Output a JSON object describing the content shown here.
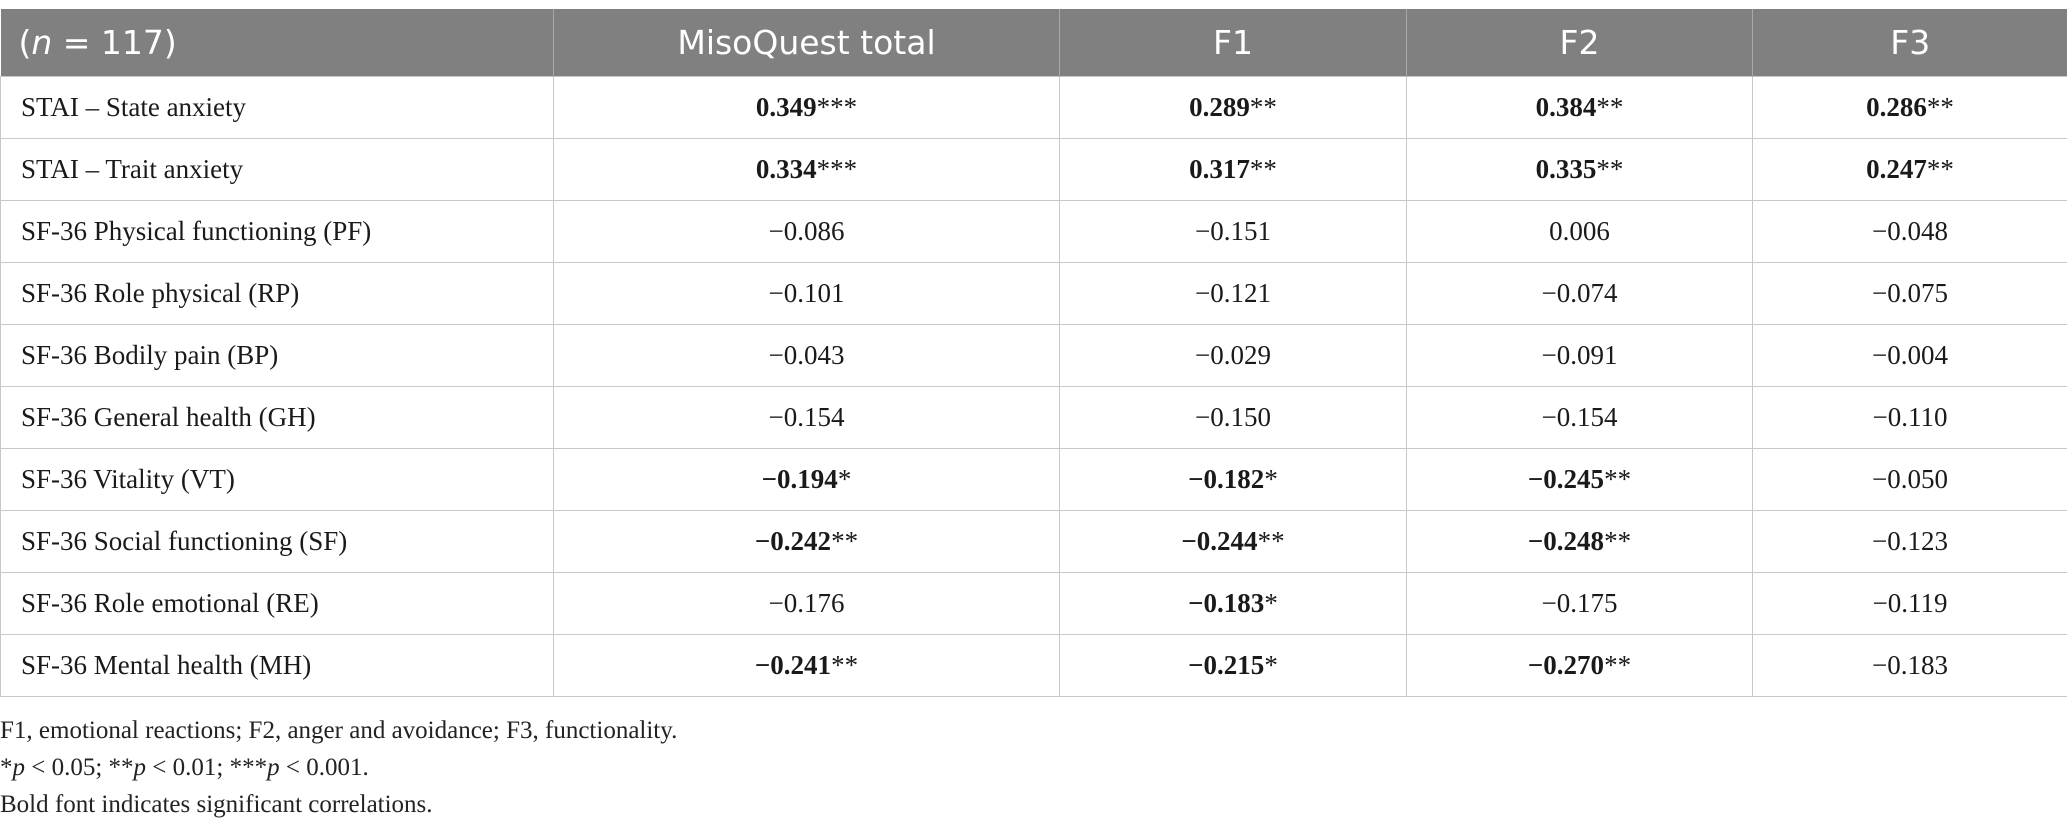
{
  "table": {
    "header": {
      "n_label": "(n = 117)",
      "n_var": "n",
      "n_rest": " = 117)",
      "col_misoquest": "MisoQuest total",
      "col_f1": "F1",
      "col_f2": "F2",
      "col_f3": "F3"
    },
    "rows": [
      {
        "label": "STAI – State anxiety",
        "misoquest": {
          "value": "0.349",
          "stars": "***",
          "significant": true
        },
        "f1": {
          "value": "0.289",
          "stars": "**",
          "significant": true
        },
        "f2": {
          "value": "0.384",
          "stars": "**",
          "significant": true
        },
        "f3": {
          "value": "0.286",
          "stars": "**",
          "significant": true
        }
      },
      {
        "label": "STAI – Trait anxiety",
        "misoquest": {
          "value": "0.334",
          "stars": "***",
          "significant": true
        },
        "f1": {
          "value": "0.317",
          "stars": "**",
          "significant": true
        },
        "f2": {
          "value": "0.335",
          "stars": "**",
          "significant": true
        },
        "f3": {
          "value": "0.247",
          "stars": "**",
          "significant": true
        }
      },
      {
        "label": "SF-36 Physical functioning (PF)",
        "misoquest": {
          "value": "−0.086",
          "stars": "",
          "significant": false
        },
        "f1": {
          "value": "−0.151",
          "stars": "",
          "significant": false
        },
        "f2": {
          "value": "0.006",
          "stars": "",
          "significant": false
        },
        "f3": {
          "value": "−0.048",
          "stars": "",
          "significant": false
        }
      },
      {
        "label": "SF-36 Role physical (RP)",
        "misoquest": {
          "value": "−0.101",
          "stars": "",
          "significant": false
        },
        "f1": {
          "value": "−0.121",
          "stars": "",
          "significant": false
        },
        "f2": {
          "value": "−0.074",
          "stars": "",
          "significant": false
        },
        "f3": {
          "value": "−0.075",
          "stars": "",
          "significant": false
        }
      },
      {
        "label": "SF-36 Bodily pain (BP)",
        "misoquest": {
          "value": "−0.043",
          "stars": "",
          "significant": false
        },
        "f1": {
          "value": "−0.029",
          "stars": "",
          "significant": false
        },
        "f2": {
          "value": "−0.091",
          "stars": "",
          "significant": false
        },
        "f3": {
          "value": "−0.004",
          "stars": "",
          "significant": false
        }
      },
      {
        "label": "SF-36 General health (GH)",
        "misoquest": {
          "value": "−0.154",
          "stars": "",
          "significant": false
        },
        "f1": {
          "value": "−0.150",
          "stars": "",
          "significant": false
        },
        "f2": {
          "value": "−0.154",
          "stars": "",
          "significant": false
        },
        "f3": {
          "value": "−0.110",
          "stars": "",
          "significant": false
        }
      },
      {
        "label": "SF-36 Vitality (VT)",
        "misoquest": {
          "value": "−0.194",
          "stars": "*",
          "significant": true
        },
        "f1": {
          "value": "−0.182",
          "stars": "*",
          "significant": true
        },
        "f2": {
          "value": "−0.245",
          "stars": "**",
          "significant": true
        },
        "f3": {
          "value": "−0.050",
          "stars": "",
          "significant": false
        }
      },
      {
        "label": "SF-36 Social functioning (SF)",
        "misoquest": {
          "value": "−0.242",
          "stars": "**",
          "significant": true
        },
        "f1": {
          "value": "−0.244",
          "stars": "**",
          "significant": true
        },
        "f2": {
          "value": "−0.248",
          "stars": "**",
          "significant": true
        },
        "f3": {
          "value": "−0.123",
          "stars": "",
          "significant": false
        }
      },
      {
        "label": "SF-36 Role emotional (RE)",
        "misoquest": {
          "value": "−0.176",
          "stars": "",
          "significant": false
        },
        "f1": {
          "value": "−0.183",
          "stars": "*",
          "significant": true
        },
        "f2": {
          "value": "−0.175",
          "stars": "",
          "significant": false
        },
        "f3": {
          "value": "−0.119",
          "stars": "",
          "significant": false
        }
      },
      {
        "label": "SF-36 Mental health (MH)",
        "misoquest": {
          "value": "−0.241",
          "stars": "**",
          "significant": true
        },
        "f1": {
          "value": "−0.215",
          "stars": "*",
          "significant": true
        },
        "f2": {
          "value": "−0.270",
          "stars": "**",
          "significant": true
        },
        "f3": {
          "value": "−0.183",
          "stars": "",
          "significant": false
        }
      }
    ]
  },
  "footnotes": {
    "abbreviations": "F1, emotional reactions; F2, anger and avoidance; F3, functionality.",
    "significance": "*p < 0.05; **p < 0.01; ***p < 0.001.",
    "sig_p": "p",
    "sig_1_pre": "*",
    "sig_1_post": " < 0.05; ",
    "sig_2_pre": "**",
    "sig_2_post": " < 0.01; ",
    "sig_3_pre": "***",
    "sig_3_post": " < 0.001.",
    "bold_note": "Bold font indicates significant correlations."
  },
  "colors": {
    "header_bg": "#808080",
    "header_text": "#ffffff",
    "grid_line": "#c8c8c8"
  }
}
